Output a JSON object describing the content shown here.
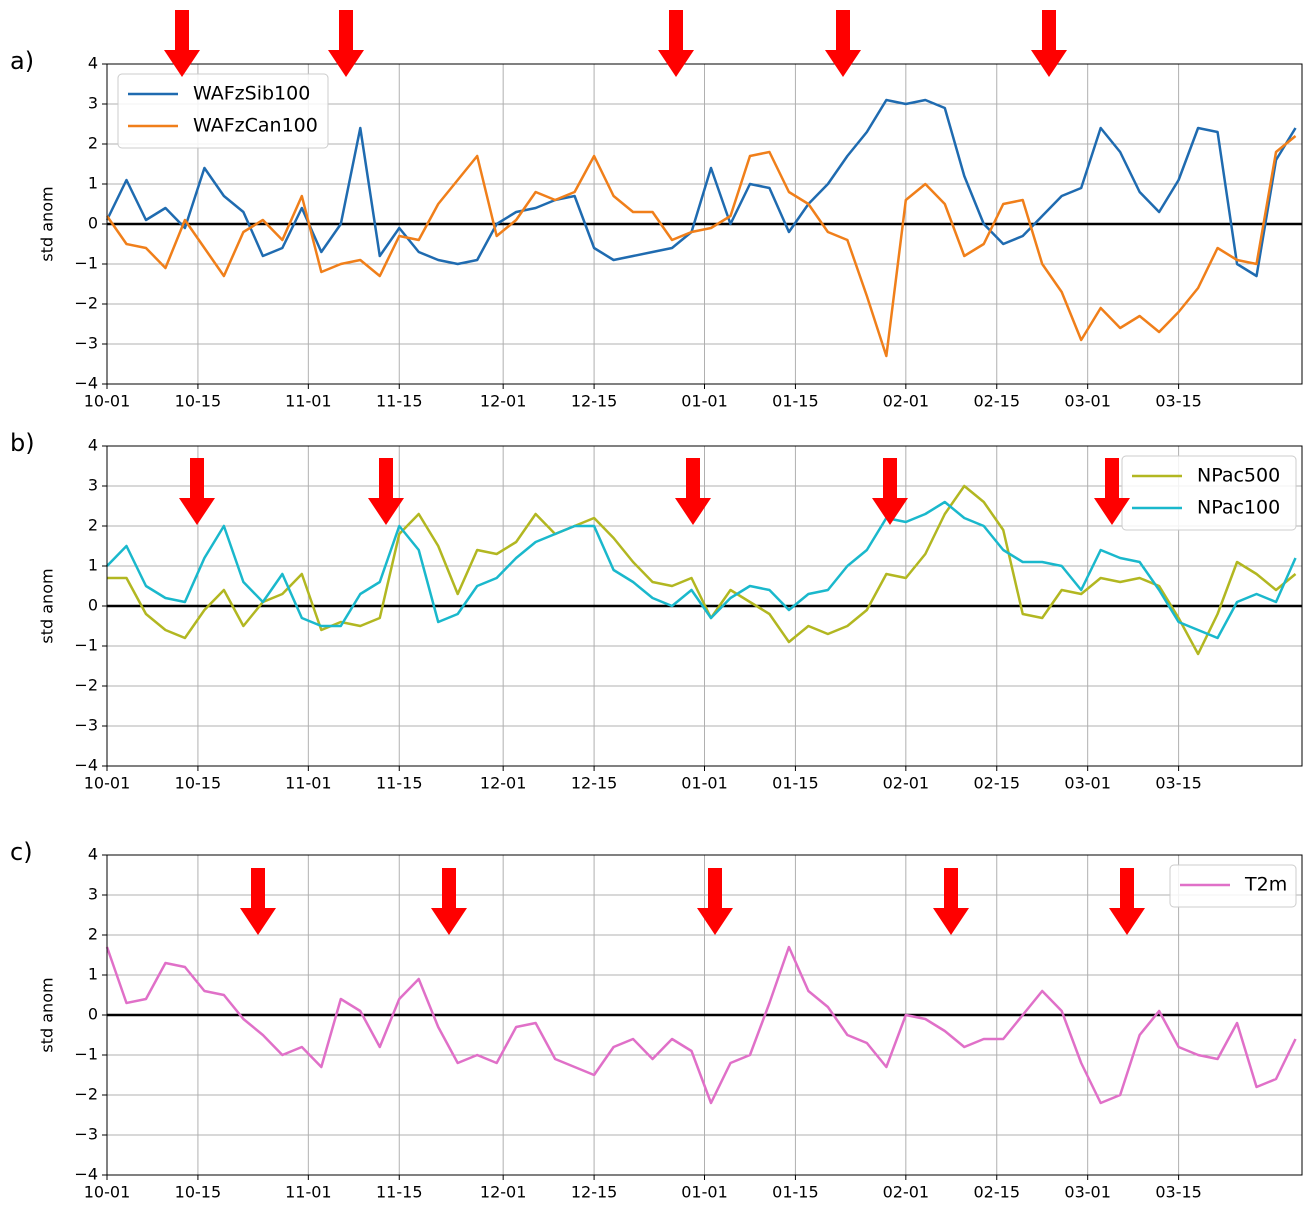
{
  "chart_data": [
    {
      "type": "line",
      "label": "a)",
      "ylabel": "std anom",
      "grid": true,
      "hline": 0,
      "legend": "upper left",
      "xlim": [
        0,
        184
      ],
      "ylim": [
        -4,
        4
      ],
      "xticks": [
        {
          "value": 0,
          "label": "10-01"
        },
        {
          "value": 14,
          "label": "10-15"
        },
        {
          "value": 31,
          "label": "11-01"
        },
        {
          "value": 45,
          "label": "11-15"
        },
        {
          "value": 61,
          "label": "12-01"
        },
        {
          "value": 75,
          "label": "12-15"
        },
        {
          "value": 92,
          "label": "01-01"
        },
        {
          "value": 106,
          "label": "01-15"
        },
        {
          "value": 123,
          "label": "02-01"
        },
        {
          "value": 137,
          "label": "02-15"
        },
        {
          "value": 151,
          "label": "03-01"
        },
        {
          "value": 165,
          "label": "03-15"
        }
      ],
      "yticks": [
        {
          "value": -4,
          "label": "−4"
        },
        {
          "value": -3,
          "label": "−3"
        },
        {
          "value": -2,
          "label": "−2"
        },
        {
          "value": -1,
          "label": "−1"
        },
        0,
        1,
        2,
        3,
        4
      ],
      "x": [
        0,
        3,
        6,
        9,
        12,
        15,
        18,
        21,
        24,
        27,
        30,
        33,
        36,
        39,
        42,
        45,
        48,
        51,
        54,
        57,
        60,
        63,
        66,
        69,
        72,
        75,
        78,
        81,
        84,
        87,
        90,
        93,
        96,
        99,
        102,
        105,
        108,
        111,
        114,
        117,
        120,
        123,
        126,
        129,
        132,
        135,
        138,
        141,
        144,
        147,
        150,
        153,
        156,
        159,
        162,
        165,
        168,
        171,
        174,
        177,
        180,
        183
      ],
      "series": [
        {
          "name": "WAFzSib100",
          "color": "#1f6bb0",
          "values": [
            0.1,
            1.1,
            0.1,
            0.4,
            -0.1,
            1.4,
            0.7,
            0.3,
            -0.8,
            -0.6,
            0.4,
            -0.7,
            0.0,
            2.4,
            -0.8,
            -0.1,
            -0.7,
            -0.9,
            -1.0,
            -0.9,
            0.0,
            0.3,
            0.4,
            0.6,
            0.7,
            -0.6,
            -0.9,
            -0.8,
            -0.7,
            -0.6,
            -0.2,
            1.4,
            0.0,
            1.0,
            0.9,
            -0.2,
            0.5,
            1.0,
            1.7,
            2.3,
            3.1,
            3.0,
            3.1,
            2.9,
            1.2,
            0.0,
            -0.5,
            -0.3,
            0.2,
            0.7,
            0.9,
            2.4,
            1.8,
            0.8,
            0.3,
            1.1,
            2.4,
            2.3,
            -1.0,
            -1.3,
            1.6,
            2.4
          ]
        },
        {
          "name": "WAFzCan100",
          "color": "#f07f1a",
          "values": [
            0.2,
            -0.5,
            -0.6,
            -1.1,
            0.1,
            -0.6,
            -1.3,
            -0.2,
            0.1,
            -0.4,
            0.7,
            -1.2,
            -1.0,
            -0.9,
            -1.3,
            -0.3,
            -0.4,
            0.5,
            1.1,
            1.7,
            -0.3,
            0.1,
            0.8,
            0.6,
            0.8,
            1.7,
            0.7,
            0.3,
            0.3,
            -0.4,
            -0.2,
            -0.1,
            0.2,
            1.7,
            1.8,
            0.8,
            0.5,
            -0.2,
            -0.4,
            -1.8,
            -3.3,
            0.6,
            1.0,
            0.5,
            -0.8,
            -0.5,
            0.5,
            0.6,
            -1.0,
            -1.7,
            -2.9,
            -2.1,
            -2.6,
            -2.3,
            -2.7,
            -2.2,
            -1.6,
            -0.6,
            -0.9,
            -1.0,
            1.8,
            2.2
          ]
        }
      ]
    },
    {
      "type": "line",
      "label": "b)",
      "ylabel": "std anom",
      "grid": true,
      "hline": 0,
      "legend": "upper right",
      "xlim": [
        0,
        184
      ],
      "ylim": [
        -4,
        4
      ],
      "xticks": [
        {
          "value": 0,
          "label": "10-01"
        },
        {
          "value": 14,
          "label": "10-15"
        },
        {
          "value": 31,
          "label": "11-01"
        },
        {
          "value": 45,
          "label": "11-15"
        },
        {
          "value": 61,
          "label": "12-01"
        },
        {
          "value": 75,
          "label": "12-15"
        },
        {
          "value": 92,
          "label": "01-01"
        },
        {
          "value": 106,
          "label": "01-15"
        },
        {
          "value": 123,
          "label": "02-01"
        },
        {
          "value": 137,
          "label": "02-15"
        },
        {
          "value": 151,
          "label": "03-01"
        },
        {
          "value": 165,
          "label": "03-15"
        }
      ],
      "yticks": [
        {
          "value": -4,
          "label": "−4"
        },
        {
          "value": -3,
          "label": "−3"
        },
        {
          "value": -2,
          "label": "−2"
        },
        {
          "value": -1,
          "label": "−1"
        },
        0,
        1,
        2,
        3,
        4
      ],
      "x": [
        0,
        3,
        6,
        9,
        12,
        15,
        18,
        21,
        24,
        27,
        30,
        33,
        36,
        39,
        42,
        45,
        48,
        51,
        54,
        57,
        60,
        63,
        66,
        69,
        72,
        75,
        78,
        81,
        84,
        87,
        90,
        93,
        96,
        99,
        102,
        105,
        108,
        111,
        114,
        117,
        120,
        123,
        126,
        129,
        132,
        135,
        138,
        141,
        144,
        147,
        150,
        153,
        156,
        159,
        162,
        165,
        168,
        171,
        174,
        177,
        180,
        183
      ],
      "series": [
        {
          "name": "NPac500",
          "color": "#b2b721",
          "values": [
            0.7,
            0.7,
            -0.2,
            -0.6,
            -0.8,
            -0.1,
            0.4,
            -0.5,
            0.1,
            0.3,
            0.8,
            -0.6,
            -0.4,
            -0.5,
            -0.3,
            1.8,
            2.3,
            1.5,
            0.3,
            1.4,
            1.3,
            1.6,
            2.3,
            1.8,
            2.0,
            2.2,
            1.7,
            1.1,
            0.6,
            0.5,
            0.7,
            -0.3,
            0.4,
            0.1,
            -0.2,
            -0.9,
            -0.5,
            -0.7,
            -0.5,
            -0.1,
            0.8,
            0.7,
            1.3,
            2.3,
            3.0,
            2.6,
            1.9,
            -0.2,
            -0.3,
            0.4,
            0.3,
            0.7,
            0.6,
            0.7,
            0.5,
            -0.3,
            -1.2,
            -0.2,
            1.1,
            0.8,
            0.4,
            0.8
          ]
        },
        {
          "name": "NPac100",
          "color": "#1ab8cc",
          "values": [
            1.0,
            1.5,
            0.5,
            0.2,
            0.1,
            1.2,
            2.0,
            0.6,
            0.1,
            0.8,
            -0.3,
            -0.5,
            -0.5,
            0.3,
            0.6,
            2.0,
            1.4,
            -0.4,
            -0.2,
            0.5,
            0.7,
            1.2,
            1.6,
            1.8,
            2.0,
            2.0,
            0.9,
            0.6,
            0.2,
            0.0,
            0.4,
            -0.3,
            0.2,
            0.5,
            0.4,
            -0.1,
            0.3,
            0.4,
            1.0,
            1.4,
            2.2,
            2.1,
            2.3,
            2.6,
            2.2,
            2.0,
            1.4,
            1.1,
            1.1,
            1.0,
            0.4,
            1.4,
            1.2,
            1.1,
            0.4,
            -0.4,
            -0.6,
            -0.8,
            0.1,
            0.3,
            0.1,
            1.2
          ]
        }
      ]
    },
    {
      "type": "line",
      "label": "c)",
      "ylabel": "std anom",
      "grid": true,
      "hline": 0,
      "legend": "upper right",
      "xlim": [
        0,
        184
      ],
      "ylim": [
        -4,
        4
      ],
      "xticks": [
        {
          "value": 0,
          "label": "10-01"
        },
        {
          "value": 14,
          "label": "10-15"
        },
        {
          "value": 31,
          "label": "11-01"
        },
        {
          "value": 45,
          "label": "11-15"
        },
        {
          "value": 61,
          "label": "12-01"
        },
        {
          "value": 75,
          "label": "12-15"
        },
        {
          "value": 92,
          "label": "01-01"
        },
        {
          "value": 106,
          "label": "01-15"
        },
        {
          "value": 123,
          "label": "02-01"
        },
        {
          "value": 137,
          "label": "02-15"
        },
        {
          "value": 151,
          "label": "03-01"
        },
        {
          "value": 165,
          "label": "03-15"
        }
      ],
      "yticks": [
        {
          "value": -4,
          "label": "−4"
        },
        {
          "value": -3,
          "label": "−3"
        },
        {
          "value": -2,
          "label": "−2"
        },
        {
          "value": -1,
          "label": "−1"
        },
        0,
        1,
        2,
        3,
        4
      ],
      "x": [
        0,
        3,
        6,
        9,
        12,
        15,
        18,
        21,
        24,
        27,
        30,
        33,
        36,
        39,
        42,
        45,
        48,
        51,
        54,
        57,
        60,
        63,
        66,
        69,
        72,
        75,
        78,
        81,
        84,
        87,
        90,
        93,
        96,
        99,
        102,
        105,
        108,
        111,
        114,
        117,
        120,
        123,
        126,
        129,
        132,
        135,
        138,
        141,
        144,
        147,
        150,
        153,
        156,
        159,
        162,
        165,
        168,
        171,
        174,
        177,
        180,
        183
      ],
      "series": [
        {
          "name": "T2m",
          "color": "#e070c8",
          "values": [
            1.7,
            0.3,
            0.4,
            1.3,
            1.2,
            0.6,
            0.5,
            -0.1,
            -0.5,
            -1.0,
            -0.8,
            -1.3,
            0.4,
            0.1,
            -0.8,
            0.4,
            0.9,
            -0.3,
            -1.2,
            -1.0,
            -1.2,
            -0.3,
            -0.2,
            -1.1,
            -1.3,
            -1.5,
            -0.8,
            -0.6,
            -1.1,
            -0.6,
            -0.9,
            -2.2,
            -1.2,
            -1.0,
            0.3,
            1.7,
            0.6,
            0.2,
            -0.5,
            -0.7,
            -1.3,
            0.0,
            -0.1,
            -0.4,
            -0.8,
            -0.6,
            -0.6,
            0.0,
            0.6,
            0.1,
            -1.2,
            -2.2,
            -2.0,
            -0.5,
            0.1,
            -0.8,
            -1.0,
            -1.1,
            -0.2,
            -1.8,
            -1.6,
            -0.6
          ]
        }
      ]
    }
  ]
}
